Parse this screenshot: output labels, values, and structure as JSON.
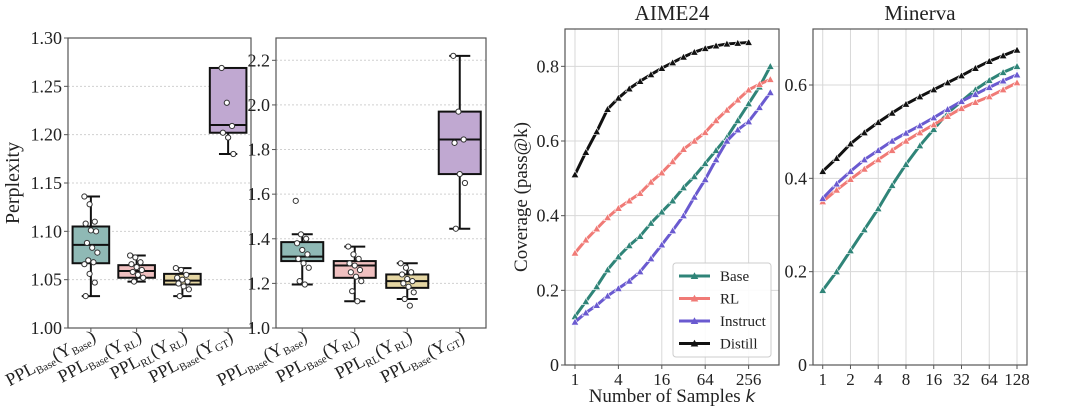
{
  "chart_data": [
    {
      "type": "box",
      "panel": "perplexity-1",
      "ylabel": "Perplexity",
      "ylim": [
        1.0,
        1.3
      ],
      "yticks": [
        "1.00",
        "1.05",
        "1.10",
        "1.15",
        "1.20",
        "1.25",
        "1.30"
      ],
      "categories": [
        {
          "main": "PPL",
          "sub": "Base",
          "arg": "(Y",
          "argsub": "Base",
          "close": ")"
        },
        {
          "main": "PPL",
          "sub": "Base",
          "arg": "(Y",
          "argsub": "RL",
          "close": ")"
        },
        {
          "main": "PPL",
          "sub": "RL",
          "arg": "(Y",
          "argsub": "RL",
          "close": ")"
        },
        {
          "main": "PPL",
          "sub": "Base",
          "arg": "(Y",
          "argsub": "GT",
          "close": ")"
        }
      ],
      "boxes": [
        {
          "whisker_low": 1.033,
          "q1": 1.067,
          "median": 1.086,
          "q3": 1.105,
          "whisker_high": 1.136,
          "color": "#8fb9b5",
          "points": [
            1.136,
            1.128,
            1.11,
            1.108,
            1.101,
            1.1,
            1.088,
            1.083,
            1.078,
            1.07,
            1.068,
            1.066,
            1.056,
            1.047,
            1.033
          ]
        },
        {
          "whisker_low": 1.048,
          "q1": 1.052,
          "median": 1.059,
          "q3": 1.065,
          "whisker_high": 1.075,
          "color": "#f0c0c0",
          "points": [
            1.075,
            1.073,
            1.068,
            1.066,
            1.063,
            1.06,
            1.058,
            1.055,
            1.052,
            1.048
          ]
        },
        {
          "whisker_low": 1.033,
          "q1": 1.045,
          "median": 1.049,
          "q3": 1.056,
          "whisker_high": 1.062,
          "color": "#e5d6a3",
          "points": [
            1.062,
            1.06,
            1.055,
            1.052,
            1.05,
            1.048,
            1.046,
            1.043,
            1.04,
            1.033
          ]
        },
        {
          "whisker_low": 1.18,
          "q1": 1.202,
          "median": 1.21,
          "q3": 1.269,
          "whisker_high": 1.269,
          "color": "#c0a8d1",
          "points": [
            1.269,
            1.233,
            1.209,
            1.202,
            1.197,
            1.18
          ]
        }
      ]
    },
    {
      "type": "box",
      "panel": "perplexity-2",
      "ylabel": "",
      "ylim": [
        1.0,
        2.3
      ],
      "yticks": [
        "1.0",
        "1.2",
        "1.4",
        "1.6",
        "1.8",
        "2.0",
        "2.2"
      ],
      "categories": [
        {
          "main": "PPL",
          "sub": "Base",
          "arg": "(Y",
          "argsub": "Base",
          "close": ")"
        },
        {
          "main": "PPL",
          "sub": "Base",
          "arg": "(Y",
          "argsub": "RL",
          "close": ")"
        },
        {
          "main": "PPL",
          "sub": "RL",
          "arg": "(Y",
          "argsub": "RL",
          "close": ")"
        },
        {
          "main": "PPL",
          "sub": "Base",
          "arg": "(Y",
          "argsub": "GT",
          "close": ")"
        }
      ],
      "boxes": [
        {
          "whisker_low": 1.195,
          "q1": 1.3,
          "median": 1.32,
          "q3": 1.385,
          "whisker_high": 1.42,
          "color": "#8fb9b5",
          "points": [
            1.57,
            1.42,
            1.4,
            1.38,
            1.35,
            1.33,
            1.31,
            1.29,
            1.27,
            1.21,
            1.195
          ]
        },
        {
          "whisker_low": 1.12,
          "q1": 1.225,
          "median": 1.28,
          "q3": 1.3,
          "whisker_high": 1.365,
          "color": "#f0c0c0",
          "points": [
            1.365,
            1.33,
            1.31,
            1.29,
            1.28,
            1.26,
            1.25,
            1.23,
            1.21,
            1.165,
            1.12
          ]
        },
        {
          "whisker_low": 1.13,
          "q1": 1.18,
          "median": 1.21,
          "q3": 1.24,
          "whisker_high": 1.29,
          "color": "#e5d6a3",
          "points": [
            1.29,
            1.27,
            1.25,
            1.24,
            1.22,
            1.21,
            1.2,
            1.185,
            1.16,
            1.13,
            1.1
          ]
        },
        {
          "whisker_low": 1.445,
          "q1": 1.69,
          "median": 1.845,
          "q3": 1.97,
          "whisker_high": 2.22,
          "color": "#c0a8d1",
          "points": [
            2.22,
            1.97,
            1.845,
            1.83,
            1.69,
            1.65,
            1.445
          ]
        }
      ]
    },
    {
      "type": "line",
      "panel": "aime24",
      "title": "AIME24",
      "xlabel": "Number of Samples ",
      "xlabel_italic": "k",
      "ylabel": "Coverage (pass@k)",
      "xscale": "log2",
      "xlim_log2": [
        -0.46,
        9.4
      ],
      "ylim": [
        0,
        0.9
      ],
      "xticks": [
        "1",
        "4",
        "16",
        "64",
        "256"
      ],
      "xtick_values": [
        1,
        4,
        16,
        64,
        256
      ],
      "yticks": [
        "0",
        "0.2",
        "0.4",
        "0.6",
        "0.8"
      ],
      "ytick_values": [
        0,
        0.2,
        0.4,
        0.6,
        0.8
      ],
      "legend": {
        "placement": "lower-right",
        "entries": [
          "Base",
          "RL",
          "Instruct",
          "Distill"
        ]
      },
      "x_log2": [
        0,
        0.5,
        1,
        1.5,
        2,
        2.5,
        3,
        3.5,
        4,
        4.5,
        5,
        5.5,
        6,
        6.5,
        7,
        7.5,
        8,
        8.5,
        9
      ],
      "series": [
        {
          "name": "Base",
          "color": "#2f8478",
          "values": [
            0.13,
            0.17,
            0.21,
            0.255,
            0.29,
            0.32,
            0.345,
            0.38,
            0.41,
            0.44,
            0.475,
            0.505,
            0.54,
            0.575,
            0.61,
            0.655,
            0.7,
            0.745,
            0.8
          ]
        },
        {
          "name": "RL",
          "color": "#f07a76",
          "values": [
            0.3,
            0.335,
            0.365,
            0.395,
            0.42,
            0.44,
            0.46,
            0.49,
            0.515,
            0.545,
            0.578,
            0.6,
            0.623,
            0.655,
            0.683,
            0.71,
            0.737,
            0.752,
            0.765
          ]
        },
        {
          "name": "Instruct",
          "color": "#6a5ad0",
          "values": [
            0.115,
            0.14,
            0.16,
            0.185,
            0.205,
            0.225,
            0.25,
            0.285,
            0.322,
            0.36,
            0.4,
            0.45,
            0.497,
            0.55,
            0.6,
            0.63,
            0.652,
            0.69,
            0.73
          ]
        },
        {
          "name": "Distill",
          "color": "#111111",
          "values": [
            0.51,
            0.57,
            0.625,
            0.685,
            0.715,
            0.74,
            0.76,
            0.778,
            0.795,
            0.81,
            0.825,
            0.838,
            0.848,
            0.855,
            0.86,
            0.862,
            0.864,
            null,
            null
          ]
        }
      ]
    },
    {
      "type": "line",
      "panel": "minerva",
      "title": "Minerva",
      "xscale": "log2",
      "xlim_log2": [
        -0.35,
        7.36
      ],
      "ylim": [
        0,
        0.72
      ],
      "xticks": [
        "1",
        "2",
        "4",
        "8",
        "16",
        "32",
        "64",
        "128"
      ],
      "xtick_values": [
        1,
        2,
        4,
        8,
        16,
        32,
        64,
        128
      ],
      "yticks": [
        "0",
        "0.2",
        "0.4",
        "0.6"
      ],
      "ytick_values": [
        0,
        0.2,
        0.4,
        0.6
      ],
      "x_log2": [
        0,
        0.5,
        1,
        1.5,
        2,
        2.5,
        3,
        3.5,
        4,
        4.5,
        5,
        5.5,
        6,
        6.5,
        7
      ],
      "series": [
        {
          "name": "Base",
          "color": "#2f8478",
          "values": [
            0.16,
            0.2,
            0.245,
            0.29,
            0.335,
            0.385,
            0.43,
            0.47,
            0.505,
            0.54,
            0.565,
            0.59,
            0.61,
            0.627,
            0.64
          ]
        },
        {
          "name": "RL",
          "color": "#f07a76",
          "values": [
            0.35,
            0.375,
            0.398,
            0.42,
            0.44,
            0.46,
            0.48,
            0.498,
            0.515,
            0.533,
            0.55,
            0.563,
            0.575,
            0.59,
            0.605
          ]
        },
        {
          "name": "Instruct",
          "color": "#6a5ad0",
          "values": [
            0.357,
            0.388,
            0.415,
            0.44,
            0.46,
            0.48,
            0.497,
            0.513,
            0.53,
            0.548,
            0.565,
            0.58,
            0.595,
            0.609,
            0.622
          ]
        },
        {
          "name": "Distill",
          "color": "#111111",
          "values": [
            0.415,
            0.443,
            0.474,
            0.498,
            0.52,
            0.54,
            0.559,
            0.575,
            0.59,
            0.605,
            0.62,
            0.636,
            0.651,
            0.663,
            0.675
          ]
        }
      ]
    }
  ]
}
